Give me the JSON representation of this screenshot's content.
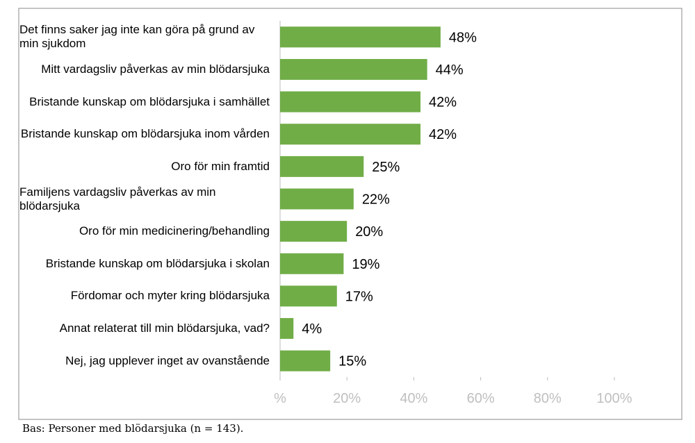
{
  "chart_data": {
    "type": "bar",
    "orientation": "horizontal",
    "categories": [
      "Det finns saker jag inte kan göra på grund av min sjukdom",
      "Mitt vardagsliv påverkas av min blödarsjuka",
      "Bristande kunskap om blödarsjuka i samhället",
      "Bristande kunskap om blödarsjuka inom vården",
      "Oro för min framtid",
      "Familjens vardagsliv påverkas av min blödarsjuka",
      "Oro för min medicinering/behandling",
      "Bristande kunskap om blödarsjuka i skolan",
      "Fördomar och myter kring blödarsjuka",
      "Annat relaterat till min blödarsjuka, vad?",
      "Nej, jag upplever inget av ovanstående"
    ],
    "values": [
      48,
      44,
      42,
      42,
      25,
      22,
      20,
      19,
      17,
      4,
      15
    ],
    "value_labels": [
      "48%",
      "44%",
      "42%",
      "42%",
      "25%",
      "22%",
      "20%",
      "19%",
      "17%",
      "4%",
      "15%"
    ],
    "color": "#70ad47",
    "xlim": [
      0,
      100
    ],
    "xticks": [
      {
        "value": 0,
        "label": "%"
      },
      {
        "value": 20,
        "label": "20%"
      },
      {
        "value": 40,
        "label": "40%"
      },
      {
        "value": 60,
        "label": "60%"
      },
      {
        "value": 80,
        "label": "80%"
      },
      {
        "value": 100,
        "label": "100%"
      }
    ],
    "grid": false,
    "footnote": "Bas: Personer med blödarsjuka (n = 143)."
  }
}
